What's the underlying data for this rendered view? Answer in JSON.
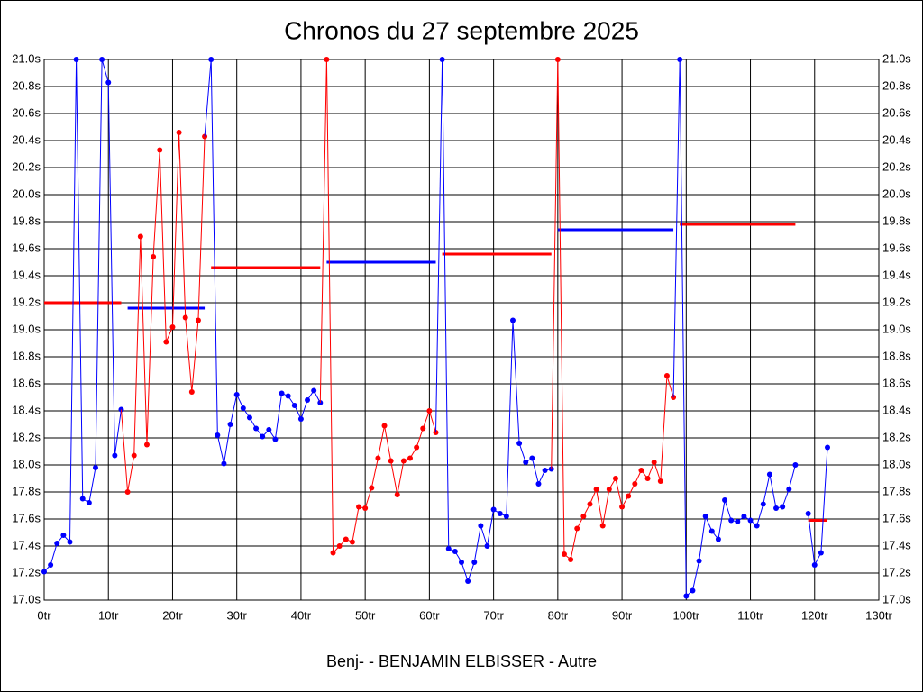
{
  "chart_data": {
    "type": "line",
    "title": "Chronos du 27 septembre 2025",
    "xlabel": "Benj- - BENJAMIN ELBISSER - Autre",
    "xlim": [
      0,
      130
    ],
    "xticks": [
      {
        "value": 0,
        "label": "0tr"
      },
      {
        "value": 10,
        "label": "10tr"
      },
      {
        "value": 20,
        "label": "20tr"
      },
      {
        "value": 30,
        "label": "30tr"
      },
      {
        "value": 40,
        "label": "40tr"
      },
      {
        "value": 50,
        "label": "50tr"
      },
      {
        "value": 60,
        "label": "60tr"
      },
      {
        "value": 70,
        "label": "70tr"
      },
      {
        "value": 80,
        "label": "80tr"
      },
      {
        "value": 90,
        "label": "90tr"
      },
      {
        "value": 100,
        "label": "100tr"
      },
      {
        "value": 110,
        "label": "110tr"
      },
      {
        "value": 120,
        "label": "120tr"
      },
      {
        "value": 130,
        "label": "130tr"
      }
    ],
    "ylim": [
      17.0,
      21.0
    ],
    "yticks": [
      {
        "value": 17.0,
        "label": "17.0s"
      },
      {
        "value": 17.2,
        "label": "17.2s"
      },
      {
        "value": 17.4,
        "label": "17.4s"
      },
      {
        "value": 17.6,
        "label": "17.6s"
      },
      {
        "value": 17.8,
        "label": "17.8s"
      },
      {
        "value": 18.0,
        "label": "18.0s"
      },
      {
        "value": 18.2,
        "label": "18.2s"
      },
      {
        "value": 18.4,
        "label": "18.4s"
      },
      {
        "value": 18.6,
        "label": "18.6s"
      },
      {
        "value": 18.8,
        "label": "18.8s"
      },
      {
        "value": 19.0,
        "label": "19.0s"
      },
      {
        "value": 19.2,
        "label": "19.2s"
      },
      {
        "value": 19.4,
        "label": "19.4s"
      },
      {
        "value": 19.6,
        "label": "19.6s"
      },
      {
        "value": 19.8,
        "label": "19.8s"
      },
      {
        "value": 20.0,
        "label": "20.0s"
      },
      {
        "value": 20.2,
        "label": "20.2s"
      },
      {
        "value": 20.4,
        "label": "20.4s"
      },
      {
        "value": 20.6,
        "label": "20.6s"
      },
      {
        "value": 20.8,
        "label": "20.8s"
      },
      {
        "value": 21.0,
        "label": "21.0s"
      }
    ],
    "grid": true,
    "series": [
      {
        "color": "#0000ff",
        "x": [
          0,
          1,
          2,
          3,
          4,
          5,
          6,
          7,
          8,
          9,
          10,
          11,
          12
        ],
        "values": [
          17.21,
          17.26,
          17.42,
          17.48,
          17.43,
          21.0,
          17.75,
          17.72,
          17.98,
          21.0,
          20.83,
          18.07,
          18.41
        ]
      },
      {
        "color": "#ff0000",
        "x": [
          13,
          14,
          15,
          16,
          17,
          18,
          19,
          20,
          21,
          22,
          23,
          24,
          25
        ],
        "values": [
          17.8,
          18.07,
          19.69,
          18.15,
          19.54,
          20.33,
          18.91,
          19.02,
          20.46,
          19.09,
          18.54,
          19.07,
          20.43
        ]
      },
      {
        "color": "#0000ff",
        "x": [
          26,
          27,
          28,
          29,
          30,
          31,
          32,
          33,
          34,
          35,
          36,
          37,
          38,
          39,
          40,
          41,
          42,
          43
        ],
        "values": [
          21.0,
          18.22,
          18.01,
          18.3,
          18.52,
          18.42,
          18.35,
          18.27,
          18.21,
          18.26,
          18.19,
          18.53,
          18.51,
          18.44,
          18.34,
          18.48,
          18.55,
          18.46
        ]
      },
      {
        "color": "#ff0000",
        "x": [
          44,
          45,
          46,
          47,
          48,
          49,
          50,
          51,
          52,
          53,
          54,
          55,
          56,
          57,
          58,
          59,
          60,
          61
        ],
        "values": [
          21.0,
          17.35,
          17.4,
          17.45,
          17.43,
          17.69,
          17.68,
          17.83,
          18.05,
          18.29,
          18.03,
          17.78,
          18.03,
          18.05,
          18.13,
          18.27,
          18.4,
          18.24
        ]
      },
      {
        "color": "#0000ff",
        "x": [
          62,
          63,
          64,
          65,
          66,
          67,
          68,
          69,
          70,
          71,
          72,
          73,
          74,
          75,
          76,
          77,
          78,
          79
        ],
        "values": [
          21.0,
          17.38,
          17.36,
          17.28,
          17.14,
          17.28,
          17.55,
          17.4,
          17.67,
          17.64,
          17.62,
          19.07,
          18.16,
          18.02,
          18.05,
          17.86,
          17.96,
          17.97
        ]
      },
      {
        "color": "#ff0000",
        "x": [
          80,
          81,
          82,
          83,
          84,
          85,
          86,
          87,
          88,
          89,
          90,
          91,
          92,
          93,
          94,
          95,
          96,
          97,
          98
        ],
        "values": [
          21.0,
          17.34,
          17.3,
          17.53,
          17.62,
          17.71,
          17.82,
          17.55,
          17.82,
          17.9,
          17.69,
          17.77,
          17.86,
          17.96,
          17.9,
          18.02,
          17.88,
          18.66,
          18.5
        ]
      },
      {
        "color": "#0000ff",
        "x": [
          99,
          100,
          101,
          102,
          103,
          104,
          105,
          106,
          107,
          108,
          109,
          110,
          111,
          112,
          113,
          114,
          115,
          116,
          117
        ],
        "values": [
          21.0,
          17.03,
          17.07,
          17.29,
          17.62,
          17.51,
          17.45,
          17.74,
          17.59,
          17.58,
          17.62,
          17.59,
          17.55,
          17.71,
          17.93,
          17.68,
          17.69,
          17.82,
          18.0
        ]
      },
      {
        "color": "#0000ff",
        "x": [
          119,
          120,
          121,
          122
        ],
        "values": [
          17.64,
          17.26,
          17.35,
          18.13
        ]
      }
    ],
    "averages": [
      {
        "color": "#ff0000",
        "x": [
          0,
          12
        ],
        "value": 19.2
      },
      {
        "color": "#0000ff",
        "x": [
          13,
          25
        ],
        "value": 19.16
      },
      {
        "color": "#ff0000",
        "x": [
          26,
          43
        ],
        "value": 19.46
      },
      {
        "color": "#0000ff",
        "x": [
          44,
          61
        ],
        "value": 19.5
      },
      {
        "color": "#ff0000",
        "x": [
          62,
          79
        ],
        "value": 19.56
      },
      {
        "color": "#0000ff",
        "x": [
          80,
          98
        ],
        "value": 19.74
      },
      {
        "color": "#ff0000",
        "x": [
          99,
          117
        ],
        "value": 19.78
      },
      {
        "color": "#ff0000",
        "x": [
          119,
          122
        ],
        "value": 17.59
      }
    ]
  }
}
